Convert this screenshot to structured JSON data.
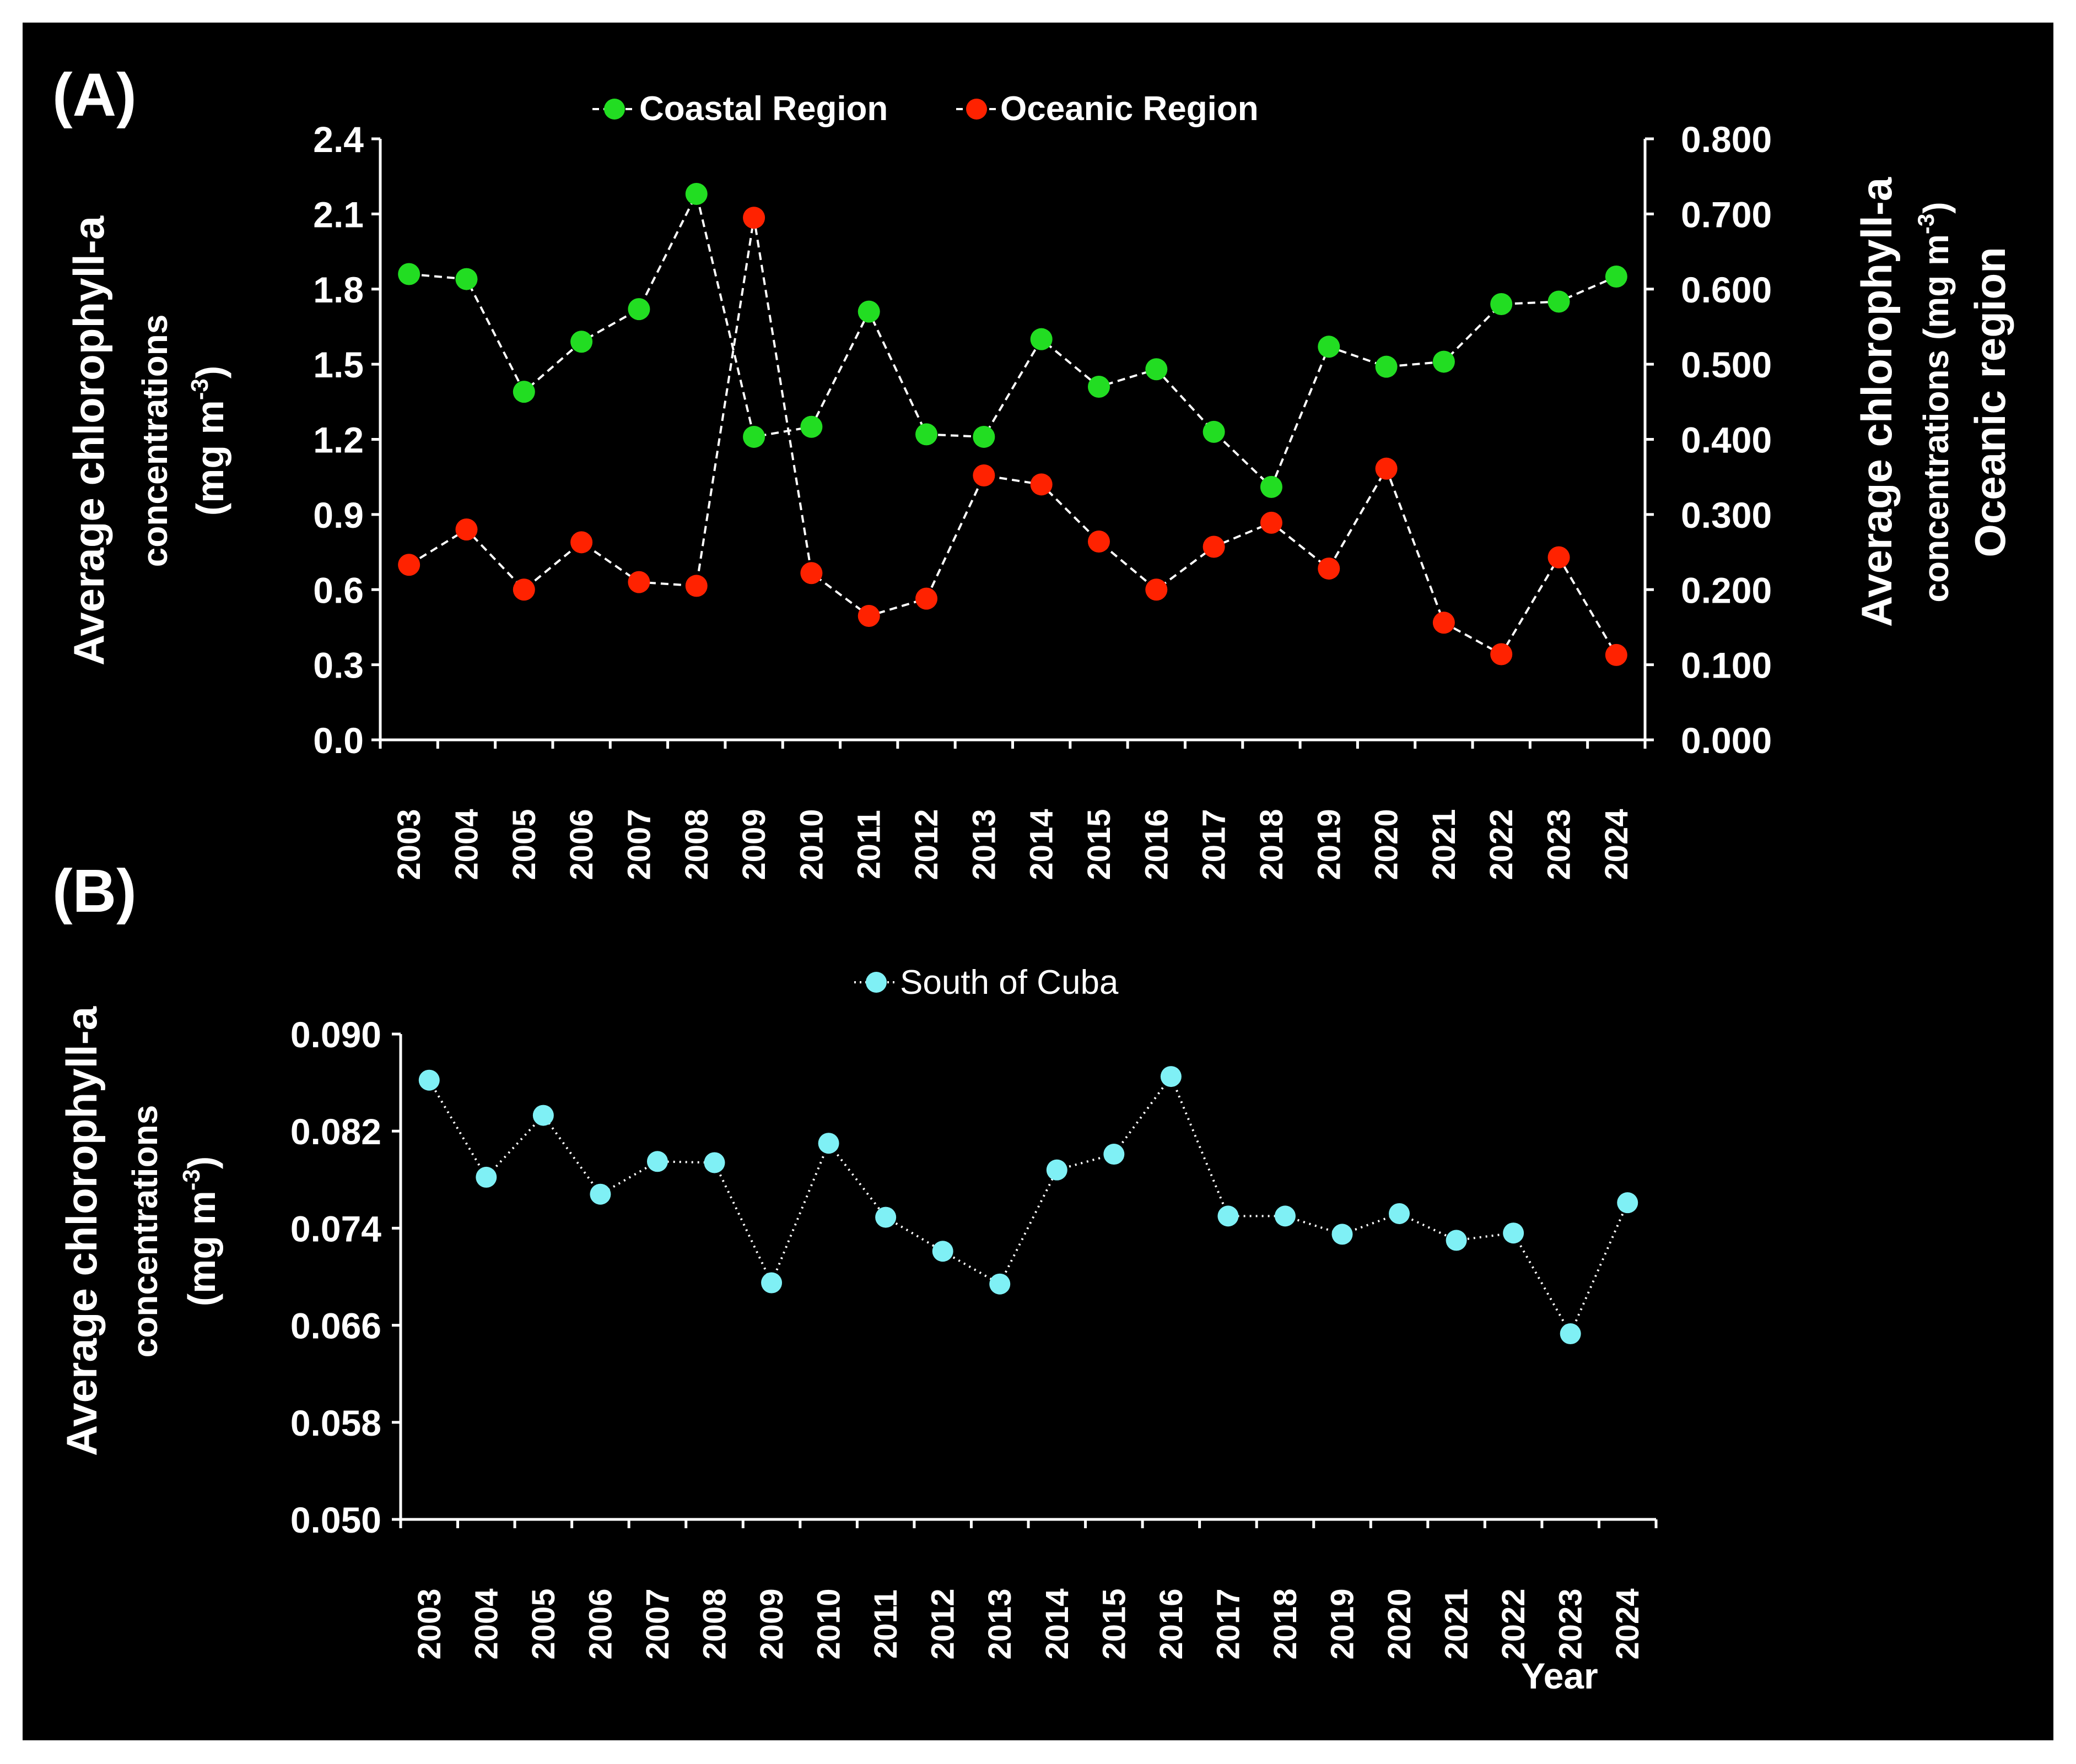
{
  "colors": {
    "background": "#000000",
    "frame": "#ffffff",
    "text": "#ffffff",
    "coastal": "#22dd22",
    "oceanic": "#ff2200",
    "south_cuba": "#7ff0f5",
    "connector": "#ffffff"
  },
  "chart_data": [
    {
      "type": "line",
      "panel_label": "(A)",
      "categories": [
        "2003",
        "2004",
        "2005",
        "2006",
        "2007",
        "2008",
        "2009",
        "2010",
        "2011",
        "2012",
        "2013",
        "2014",
        "2015",
        "2016",
        "2017",
        "2018",
        "2019",
        "2020",
        "2021",
        "2022",
        "2023",
        "2024"
      ],
      "series": [
        {
          "name": "Coastal Region",
          "axis": "left",
          "values": [
            1.86,
            1.84,
            1.39,
            1.59,
            1.72,
            2.18,
            1.21,
            1.25,
            1.71,
            1.22,
            1.21,
            1.6,
            1.41,
            1.48,
            1.23,
            1.01,
            1.57,
            1.49,
            1.51,
            1.74,
            1.75,
            1.85
          ]
        },
        {
          "name": "Oceanic Region",
          "axis": "right",
          "values": [
            0.233,
            0.28,
            0.2,
            0.263,
            0.21,
            0.205,
            0.695,
            0.222,
            0.165,
            0.188,
            0.352,
            0.34,
            0.264,
            0.2,
            0.257,
            0.289,
            0.228,
            0.361,
            0.156,
            0.114,
            0.243,
            0.113
          ]
        }
      ],
      "ylabel_left": [
        "Average chlorophyll-a",
        "concentrations",
        "(mg m",
        "-3",
        ")"
      ],
      "ylabel_right": [
        "Average chlorophyll-a",
        "concentrations (mg m",
        "-3",
        ")",
        "Oceanic region"
      ],
      "ylim_left": [
        0,
        2.4
      ],
      "yticks_left": [
        "0.0",
        "0.3",
        "0.6",
        "0.9",
        "1.2",
        "1.5",
        "1.8",
        "2.1",
        "2.4"
      ],
      "ylim_right": [
        0,
        0.8
      ],
      "yticks_right": [
        "0.000",
        "0.100",
        "0.200",
        "0.300",
        "0.400",
        "0.500",
        "0.600",
        "0.700",
        "0.800"
      ],
      "legend": "top-center",
      "grid": false
    },
    {
      "type": "line",
      "panel_label": "(B)",
      "categories": [
        "2003",
        "2004",
        "2005",
        "2006",
        "2007",
        "2008",
        "2009",
        "2010",
        "2011",
        "2012",
        "2013",
        "2014",
        "2015",
        "2016",
        "2017",
        "2018",
        "2019",
        "2020",
        "2021",
        "2022",
        "2023",
        "2024"
      ],
      "series": [
        {
          "name": "South of Cuba",
          "values": [
            0.0862,
            0.0782,
            0.0833,
            0.0768,
            0.0795,
            0.0794,
            0.0695,
            0.081,
            0.0749,
            0.0721,
            0.0694,
            0.0788,
            0.0801,
            0.0865,
            0.075,
            0.075,
            0.0735,
            0.0752,
            0.073,
            0.0736,
            0.0653,
            0.0761
          ]
        }
      ],
      "xlabel": "Year",
      "ylabel": [
        "Average chlorophyll-a",
        "concentrations",
        "(mg m",
        "-3",
        ")"
      ],
      "ylim": [
        0.05,
        0.09
      ],
      "yticks": [
        "0.050",
        "0.058",
        "0.066",
        "0.074",
        "0.082",
        "0.090"
      ],
      "legend": "top-center",
      "grid": false
    }
  ]
}
